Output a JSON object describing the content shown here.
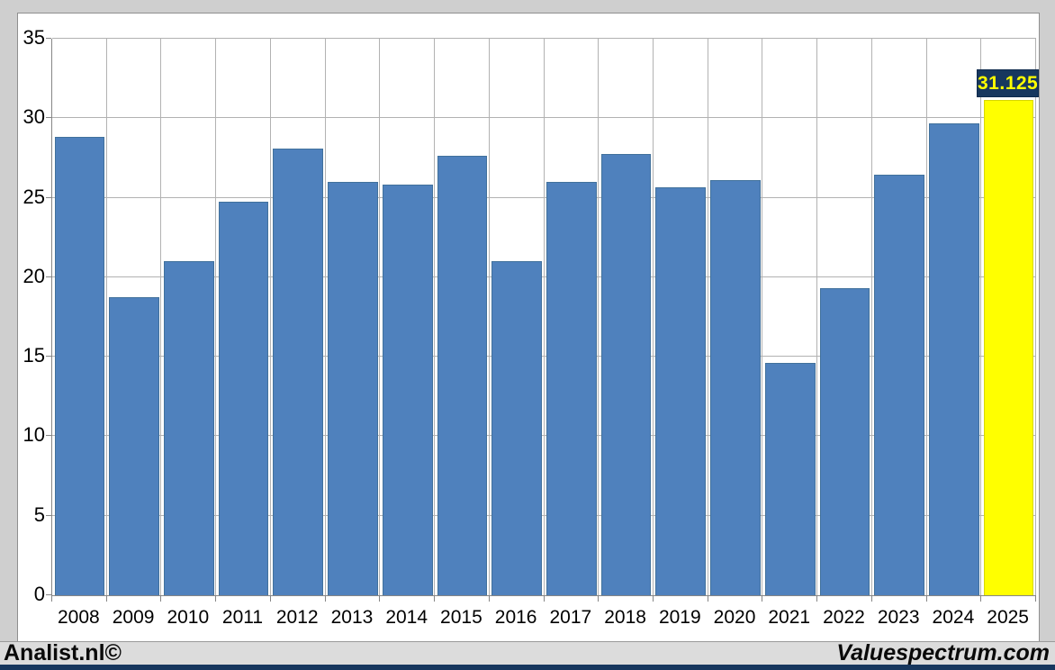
{
  "chart_data": {
    "type": "bar",
    "title": "",
    "xlabel": "",
    "ylabel": "",
    "categories": [
      "2008",
      "2009",
      "2010",
      "2011",
      "2012",
      "2013",
      "2014",
      "2015",
      "2016",
      "2017",
      "2018",
      "2019",
      "2020",
      "2021",
      "2022",
      "2023",
      "2024",
      "2025"
    ],
    "values": [
      28.8,
      18.75,
      21.0,
      24.75,
      28.1,
      26.0,
      25.8,
      27.65,
      21.0,
      26.0,
      27.75,
      25.65,
      26.1,
      14.6,
      19.3,
      26.45,
      29.7,
      31.125
    ],
    "ylim": [
      0,
      35
    ],
    "ytick_step": 5,
    "ytick_labels": [
      "0",
      "5",
      "10",
      "15",
      "20",
      "25",
      "30",
      "35"
    ],
    "grid": "on",
    "legend": "none",
    "bar_color": "#4f81bd",
    "highlight": {
      "category": "2025",
      "value": 31.125,
      "label": "31.125",
      "bar_color": "#ffff00",
      "label_bg": "#17375e",
      "label_fg": "#ffff00"
    }
  },
  "footer": {
    "left": "Analist.nl©",
    "right": "Valuespectrum.com"
  },
  "colors": {
    "page_bg": "#cfcfcf",
    "chart_bg": "#ffffff",
    "gridline": "#b2b2b2",
    "axis": "#868686",
    "footer_bg": "#dcdcdc",
    "bottom_strip": "#17375e"
  }
}
